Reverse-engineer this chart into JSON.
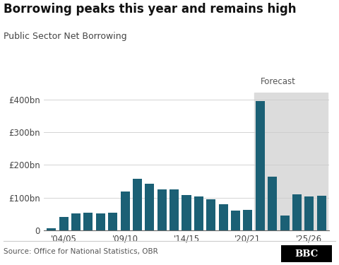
{
  "title": "Borrowing peaks this year and remains high",
  "subtitle": "Public Sector Net Borrowing",
  "source": "Source: Office for National Statistics, OBR",
  "bar_color": "#1b6075",
  "forecast_bg": "#dcdcdc",
  "background_color": "#ffffff",
  "ylim": [
    0,
    420
  ],
  "yticks": [
    0,
    100,
    200,
    300,
    400
  ],
  "ytick_labels": [
    "0",
    "£100bn",
    "£200bn",
    "£300bn",
    "£400bn"
  ],
  "forecast_label": "Forecast",
  "forecast_start_index": 17,
  "xtick_positions": [
    1,
    6,
    11,
    16,
    21
  ],
  "xtick_labels": [
    "'04/05",
    "'09/10",
    "'14/15",
    "'20/21",
    "'25/26"
  ],
  "values": [
    8,
    42,
    52,
    55,
    52,
    55,
    120,
    158,
    142,
    125,
    125,
    108,
    103,
    95,
    80,
    60,
    62,
    394,
    165,
    45,
    110,
    103,
    107
  ]
}
